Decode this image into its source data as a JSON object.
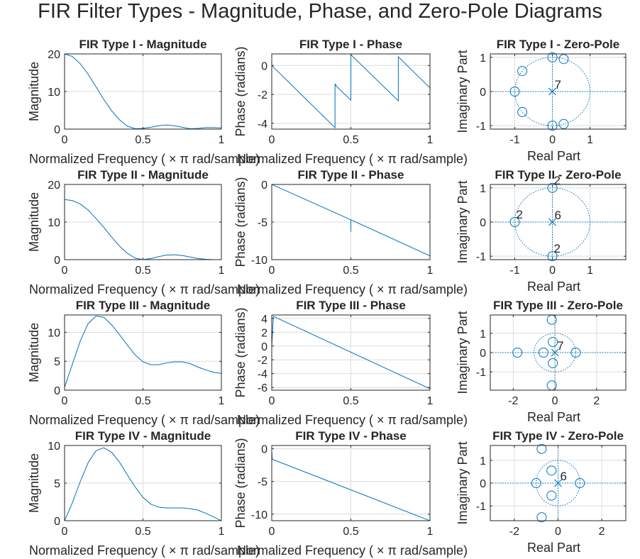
{
  "figure": {
    "title": "FIR Filter Types - Magnitude, Phase, and Zero-Pole Diagrams",
    "colors": {
      "line": "#0072BD",
      "axis": "#262626",
      "grid": "#dcdcdc",
      "background": "#ffffff"
    },
    "freq_xlabel": "Normalized  Frequency  ( ×  π  rad/sample)"
  },
  "chart_data": [
    {
      "type": "line",
      "title": "FIR Type I - Magnitude",
      "xlabel": "Normalized  Frequency  ( ×  π  rad/sample)",
      "ylabel": "Magnitude",
      "xlim": [
        0,
        1
      ],
      "ylim": [
        0,
        20
      ],
      "xticks": [
        0,
        0.5,
        1
      ],
      "yticks": [
        0,
        10,
        20
      ],
      "xticklabels": [
        "0",
        "0.5",
        "1"
      ],
      "yticklabels": [
        "0",
        "10",
        "20"
      ],
      "grid": true,
      "series": [
        {
          "x": [
            0,
            0.05,
            0.1,
            0.15,
            0.2,
            0.25,
            0.3,
            0.35,
            0.4,
            0.45,
            0.5,
            0.55,
            0.6,
            0.65,
            0.7,
            0.75,
            0.8,
            0.85,
            0.9,
            0.95,
            1.0
          ],
          "y": [
            20,
            19.3,
            17.4,
            14.6,
            11.3,
            7.9,
            4.9,
            2.5,
            0.8,
            0.1,
            0.2,
            0.5,
            0.9,
            1.1,
            0.9,
            0.5,
            0.1,
            0.2,
            0.4,
            0.4,
            0.3
          ]
        }
      ]
    },
    {
      "type": "line",
      "title": "FIR Type I - Phase",
      "xlabel": "Normalized  Frequency  ( ×  π  rad/sample)",
      "ylabel": "Phase (radians)",
      "xlim": [
        0,
        1
      ],
      "ylim": [
        -4.4,
        0.8
      ],
      "xticks": [
        0,
        0.5,
        1
      ],
      "yticks": [
        0,
        -2,
        -4
      ],
      "xticklabels": [
        "0",
        "0.5",
        "1"
      ],
      "yticklabels": [
        "0",
        "-2",
        "-4"
      ],
      "grid": true,
      "series": [
        {
          "x": [
            0,
            0.4,
            0.4,
            0.405,
            0.405,
            0.5,
            0.5,
            0.8,
            0.8,
            1.0
          ],
          "y": [
            0,
            -4.3,
            -1.3,
            -1.3,
            -1.4,
            -2.4,
            0.75,
            -2.45,
            0.6,
            -1.55
          ]
        }
      ]
    },
    {
      "type": "scatter",
      "title": "FIR Type I - Zero-Pole",
      "xlabel": "Real Part",
      "ylabel": "Imaginary Part",
      "xlim": [
        -1.65,
        1.95
      ],
      "ylim": [
        -1.1,
        1.1
      ],
      "xticks": [
        -1,
        0,
        1
      ],
      "yticks": [
        1,
        0,
        -1
      ],
      "xticklabels": [
        "-1",
        "0",
        "1"
      ],
      "yticklabels": [
        "1",
        "0",
        "-1"
      ],
      "grid": true,
      "zeros": [
        [
          0,
          1
        ],
        [
          0.3,
          0.95
        ],
        [
          -0.8,
          0.6
        ],
        [
          -1,
          0
        ],
        [
          -0.8,
          -0.6
        ],
        [
          0,
          -1
        ],
        [
          0.3,
          -0.95
        ]
      ],
      "poles": [
        [
          0,
          0
        ]
      ],
      "pole_multiplicity": "7",
      "zero_multiplicity_labels": []
    },
    {
      "type": "line",
      "title": "FIR Type II - Magnitude",
      "xlabel": "Normalized  Frequency  ( ×  π  rad/sample)",
      "ylabel": "Magnitude",
      "xlim": [
        0,
        1
      ],
      "ylim": [
        0,
        20
      ],
      "xticks": [
        0,
        0.5,
        1
      ],
      "yticks": [
        0,
        10,
        20
      ],
      "xticklabels": [
        "0",
        "0.5",
        "1"
      ],
      "yticklabels": [
        "0",
        "10",
        "20"
      ],
      "grid": true,
      "series": [
        {
          "x": [
            0,
            0.05,
            0.1,
            0.15,
            0.2,
            0.25,
            0.3,
            0.35,
            0.4,
            0.45,
            0.5,
            0.55,
            0.6,
            0.65,
            0.7,
            0.75,
            0.8,
            0.85,
            0.9,
            0.95,
            1.0
          ],
          "y": [
            16,
            15.7,
            14.8,
            13.2,
            11.0,
            8.6,
            6.0,
            3.6,
            1.7,
            0.4,
            0.0,
            0.3,
            0.8,
            1.2,
            1.3,
            1.1,
            0.7,
            0.3,
            0.1,
            0.0,
            0.0
          ]
        }
      ]
    },
    {
      "type": "line",
      "title": "FIR Type II - Phase",
      "xlabel": "Normalized  Frequency  ( ×  π  rad/sample)",
      "ylabel": "Phase (radians)",
      "xlim": [
        0,
        1
      ],
      "ylim": [
        -10,
        0
      ],
      "xticks": [
        0,
        0.5,
        1
      ],
      "yticks": [
        0,
        -5,
        -10
      ],
      "xticklabels": [
        "0",
        "0.5",
        "1"
      ],
      "yticklabels": [
        "0",
        "-5",
        "-10"
      ],
      "grid": true,
      "series": [
        {
          "x": [
            0,
            0.5,
            0.5,
            0.5,
            1.0
          ],
          "y": [
            0,
            -4.7,
            -6.3,
            -4.7,
            -9.5
          ]
        }
      ]
    },
    {
      "type": "scatter",
      "title": "FIR Type II - Zero-Pole",
      "xlabel": "Real Part",
      "ylabel": "Imaginary Part",
      "xlim": [
        -1.65,
        1.95
      ],
      "ylim": [
        -1.1,
        1.1
      ],
      "xticks": [
        -1,
        0,
        1
      ],
      "yticks": [
        1,
        0,
        -1
      ],
      "xticklabels": [
        "-1",
        "0",
        "1"
      ],
      "yticklabels": [
        "1",
        "0",
        "-1"
      ],
      "grid": true,
      "zeros": [
        [
          0,
          1
        ],
        [
          -1,
          0
        ],
        [
          0,
          -1
        ]
      ],
      "poles": [
        [
          0,
          0
        ]
      ],
      "pole_multiplicity": "6",
      "zero_multiplicity_labels": [
        {
          "text": "2",
          "x": 0,
          "y": 1
        },
        {
          "text": "2",
          "x": -1,
          "y": 0
        },
        {
          "text": "2",
          "x": 0,
          "y": -1
        }
      ]
    },
    {
      "type": "line",
      "title": "FIR Type III - Magnitude",
      "xlabel": "Normalized  Frequency  ( ×  π  rad/sample)",
      "ylabel": "Magnitude",
      "xlim": [
        0,
        1
      ],
      "ylim": [
        0,
        13
      ],
      "xticks": [
        0,
        0.5,
        1
      ],
      "yticks": [
        0,
        5,
        10
      ],
      "xticklabels": [
        "0",
        "0.5",
        "1"
      ],
      "yticklabels": [
        "0",
        "5",
        "10"
      ],
      "grid": true,
      "series": [
        {
          "x": [
            0,
            0.05,
            0.1,
            0.15,
            0.2,
            0.25,
            0.3,
            0.35,
            0.4,
            0.45,
            0.5,
            0.55,
            0.6,
            0.65,
            0.7,
            0.75,
            0.8,
            0.85,
            0.9,
            0.95,
            1.0
          ],
          "y": [
            0.5,
            4.5,
            8.5,
            11.5,
            12.8,
            12.6,
            11.3,
            9.6,
            7.8,
            6.1,
            4.9,
            4.4,
            4.4,
            4.7,
            4.9,
            4.9,
            4.6,
            4.0,
            3.5,
            3.1,
            2.9
          ]
        }
      ]
    },
    {
      "type": "line",
      "title": "FIR Type III - Phase",
      "xlabel": "Normalized  Frequency  ( ×  π  rad/sample)",
      "ylabel": "Phase (radians)",
      "xlim": [
        0,
        1
      ],
      "ylim": [
        -6.4,
        4.5
      ],
      "xticks": [
        0,
        0.5,
        1
      ],
      "yticks": [
        4,
        2,
        0,
        -2,
        -4,
        -6
      ],
      "xticklabels": [
        "0",
        "0.5",
        "1"
      ],
      "yticklabels": [
        "4",
        "2",
        "0",
        "-2",
        "-4",
        "-6"
      ],
      "grid": true,
      "series": [
        {
          "x": [
            0,
            0.005,
            0.01,
            0.02,
            1.0
          ],
          "y": [
            -0.1,
            2.0,
            4.3,
            4.2,
            -6.2
          ]
        }
      ]
    },
    {
      "type": "scatter",
      "title": "FIR Type III - Zero-Pole",
      "xlabel": "Real Part",
      "ylabel": "Imaginary Part",
      "xlim": [
        -3.1,
        3.4
      ],
      "ylim": [
        -1.95,
        1.95
      ],
      "xticks": [
        -2,
        0,
        2
      ],
      "yticks": [
        1,
        0,
        -1
      ],
      "xticklabels": [
        "-2",
        "0",
        "2"
      ],
      "yticklabels": [
        "1",
        "0",
        "-1"
      ],
      "grid": true,
      "zeros": [
        [
          -1.8,
          0
        ],
        [
          -0.55,
          0
        ],
        [
          1,
          0
        ],
        [
          -0.15,
          1.7
        ],
        [
          -0.1,
          0.55
        ],
        [
          -0.1,
          -0.55
        ],
        [
          -0.15,
          -1.7
        ]
      ],
      "poles": [
        [
          0,
          0
        ]
      ],
      "pole_multiplicity": "7",
      "zero_multiplicity_labels": []
    },
    {
      "type": "line",
      "title": "FIR Type IV - Magnitude",
      "xlabel": "Normalized  Frequency  ( ×  π  rad/sample)",
      "ylabel": "Magnitude",
      "xlim": [
        0,
        1
      ],
      "ylim": [
        0,
        10
      ],
      "xticks": [
        0,
        0.5,
        1
      ],
      "yticks": [
        0,
        5,
        10
      ],
      "xticklabels": [
        "0",
        "0.5",
        "1"
      ],
      "yticklabels": [
        "0",
        "5",
        "10"
      ],
      "grid": true,
      "series": [
        {
          "x": [
            0,
            0.05,
            0.1,
            0.15,
            0.2,
            0.25,
            0.3,
            0.35,
            0.4,
            0.45,
            0.5,
            0.55,
            0.6,
            0.65,
            0.7,
            0.75,
            0.8,
            0.85,
            0.9,
            0.95,
            1.0
          ],
          "y": [
            0,
            2.4,
            5.2,
            7.7,
            9.3,
            9.7,
            9.1,
            7.8,
            6.1,
            4.5,
            3.1,
            2.2,
            1.8,
            1.7,
            1.7,
            1.7,
            1.6,
            1.4,
            1.0,
            0.5,
            0.0
          ]
        }
      ]
    },
    {
      "type": "line",
      "title": "FIR Type IV - Phase",
      "xlabel": "Normalized  Frequency  ( ×  π  rad/sample)",
      "ylabel": "Phase (radians)",
      "xlim": [
        0,
        1
      ],
      "ylim": [
        -11,
        0.5
      ],
      "xticks": [
        0,
        0.5,
        1
      ],
      "yticks": [
        0,
        -5,
        -10
      ],
      "xticklabels": [
        "0",
        "0.5",
        "1"
      ],
      "yticklabels": [
        "0",
        "-5",
        "-10"
      ],
      "grid": true,
      "series": [
        {
          "x": [
            0,
            0.003,
            1.0
          ],
          "y": [
            -0.3,
            -1.6,
            -11.0
          ]
        }
      ]
    },
    {
      "type": "scatter",
      "title": "FIR Type IV - Zero-Pole",
      "xlabel": "Real Part",
      "ylabel": "Imaginary Part",
      "xlim": [
        -3.1,
        3.1
      ],
      "ylim": [
        -1.65,
        1.65
      ],
      "xticks": [
        -2,
        0,
        2
      ],
      "yticks": [
        1,
        0,
        -1
      ],
      "xticklabels": [
        "-2",
        "0",
        "2"
      ],
      "yticklabels": [
        "1",
        "0",
        "-1"
      ],
      "grid": true,
      "zeros": [
        [
          -0.75,
          1.5
        ],
        [
          -1,
          0
        ],
        [
          1,
          0
        ],
        [
          -0.3,
          0.55
        ],
        [
          -0.3,
          -0.55
        ],
        [
          -0.75,
          -1.5
        ]
      ],
      "poles": [
        [
          0,
          0
        ]
      ],
      "pole_multiplicity": "6",
      "zero_multiplicity_labels": []
    }
  ]
}
